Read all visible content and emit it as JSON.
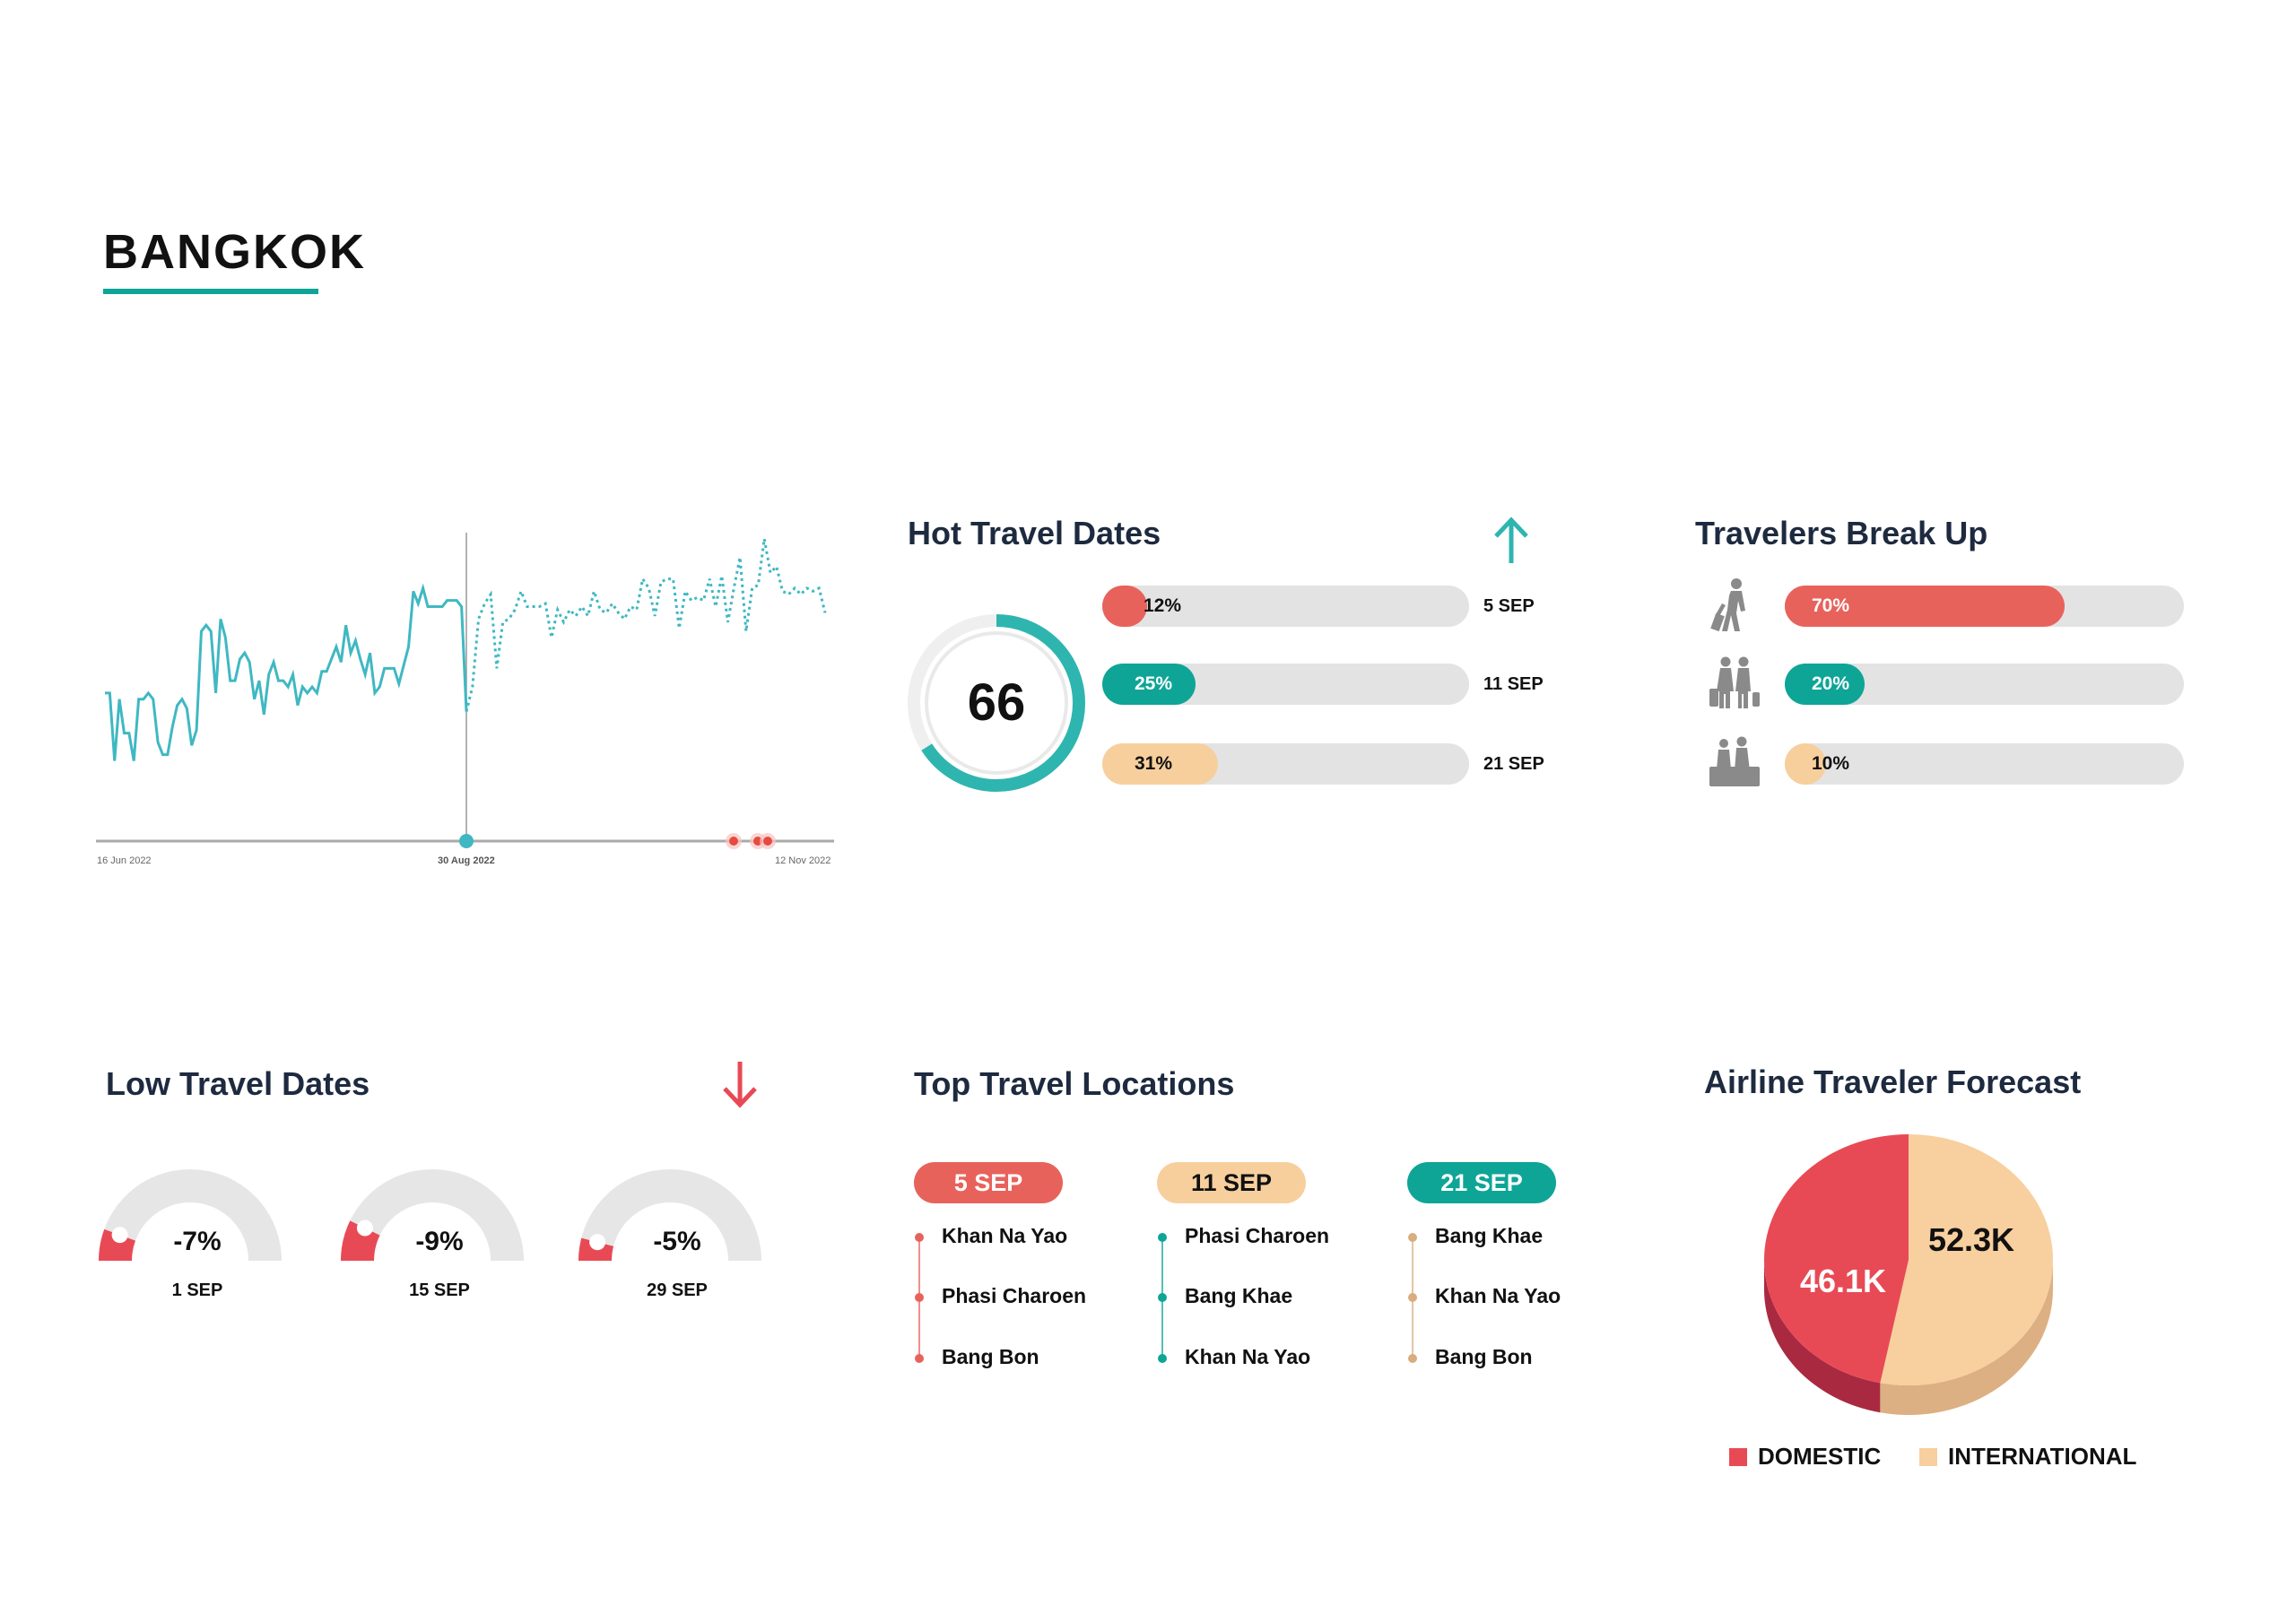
{
  "page": {
    "title": "BANGKOK"
  },
  "colors": {
    "teal": "#0ea597",
    "line": "#3fb8c2",
    "red": "#e8625c",
    "peach": "#f7cf9d",
    "gray_track": "#e3e3e3",
    "navy": "#1d2a3f",
    "pie_domestic": "#e84a55",
    "pie_international": "#f8cf9e"
  },
  "trend_chart": {
    "xticks": [
      "16 Jun 2022",
      "30 Aug 2022",
      "12 Nov 2022"
    ]
  },
  "hot_travel": {
    "title": "Hot Travel Dates",
    "trend_icon": "arrow-up-icon",
    "score": "66",
    "score_fraction": 0.66,
    "bars": [
      {
        "label": "12%",
        "value": 12,
        "date": "5 SEP",
        "color": "#e8625c",
        "text_color": "#111"
      },
      {
        "label": "25%",
        "value": 25,
        "date": "11 SEP",
        "color": "#0ea597",
        "text_color": "#fff"
      },
      {
        "label": "31%",
        "value": 31,
        "date": "21 SEP",
        "color": "#f7cf9d",
        "text_color": "#111"
      }
    ]
  },
  "travelers": {
    "title": "Travelers Break Up",
    "rows": [
      {
        "icon": "solo-traveler-icon",
        "label": "70%",
        "value": 70,
        "color": "#e8625c",
        "text_color": "#fff"
      },
      {
        "icon": "couple-travelers-icon",
        "label": "20%",
        "value": 20,
        "color": "#0ea597",
        "text_color": "#fff"
      },
      {
        "icon": "family-travelers-icon",
        "label": "10%",
        "value": 10,
        "color": "#f7cf9d",
        "text_color": "#111"
      }
    ]
  },
  "low_travel": {
    "title": "Low Travel Dates",
    "trend_icon": "arrow-down-icon",
    "gauges": [
      {
        "pct": "-7%",
        "value": 7,
        "date": "1 SEP"
      },
      {
        "pct": "-9%",
        "value": 9,
        "date": "15 SEP"
      },
      {
        "pct": "-5%",
        "value": 5,
        "date": "29 SEP"
      }
    ]
  },
  "top_locations": {
    "title": "Top Travel Locations",
    "columns": [
      {
        "date": "5 SEP",
        "color": "#e8625c",
        "text_color": "#fff",
        "items": [
          "Khan Na Yao",
          "Phasi Charoen",
          "Bang Bon"
        ]
      },
      {
        "date": "11 SEP",
        "color": "#f7cf9d",
        "text_color": "#111",
        "dot": "#0ea597",
        "items": [
          "Phasi Charoen",
          "Bang Khae",
          "Khan Na Yao"
        ]
      },
      {
        "date": "21 SEP",
        "color": "#0ea597",
        "text_color": "#fff",
        "dot": "#d9ad80",
        "items": [
          "Bang Khae",
          "Khan Na Yao",
          "Bang Bon"
        ]
      }
    ]
  },
  "chart_data": [
    {
      "type": "line",
      "xticks": [
        "16 Jun 2022",
        "30 Aug 2022",
        "12 Nov 2022"
      ],
      "highlighted_x": "30 Aug 2022",
      "series": [
        {
          "style": "solid",
          "values": [
            48,
            48,
            26,
            46,
            35,
            35,
            26,
            46,
            46,
            48,
            46,
            32,
            28,
            28,
            37,
            44,
            46,
            43,
            31,
            36,
            68,
            70,
            68,
            48,
            72,
            66,
            52,
            52,
            59,
            61,
            58,
            46,
            52,
            41,
            54,
            58,
            52,
            52,
            50,
            54,
            44,
            50,
            48,
            50,
            48,
            55,
            55,
            59,
            63,
            58,
            70,
            61,
            65,
            59,
            54,
            61,
            48,
            50,
            56,
            56,
            56,
            51,
            57,
            63,
            81,
            77,
            82,
            76,
            76,
            76,
            76,
            78,
            78,
            78,
            76,
            42
          ]
        },
        {
          "style": "dotted",
          "values": [
            42,
            50,
            72,
            77,
            80,
            56,
            71,
            72,
            75,
            81,
            76,
            76,
            76,
            77,
            66,
            75,
            71,
            75,
            73,
            76,
            73,
            81,
            75,
            74,
            77,
            74,
            72,
            76,
            75,
            85,
            82,
            73,
            84,
            85,
            85,
            69,
            81,
            78,
            79,
            78,
            85,
            76,
            86,
            71,
            82,
            92,
            68,
            82,
            83,
            98,
            87,
            89,
            81,
            80,
            82,
            80,
            82,
            81,
            82,
            74
          ]
        }
      ],
      "markers": {
        "forecast_start": 1,
        "alerts": 3
      },
      "grid": false
    },
    {
      "type": "pie",
      "title": "Airline Traveler Forecast",
      "slices": [
        {
          "name": "DOMESTIC",
          "value": 46.1,
          "label": "46.1K",
          "color": "#e84a55"
        },
        {
          "name": "INTERNATIONAL",
          "value": 52.3,
          "label": "52.3K",
          "color": "#f8cf9e"
        }
      ],
      "legend": "bottom",
      "style": "3d"
    }
  ]
}
